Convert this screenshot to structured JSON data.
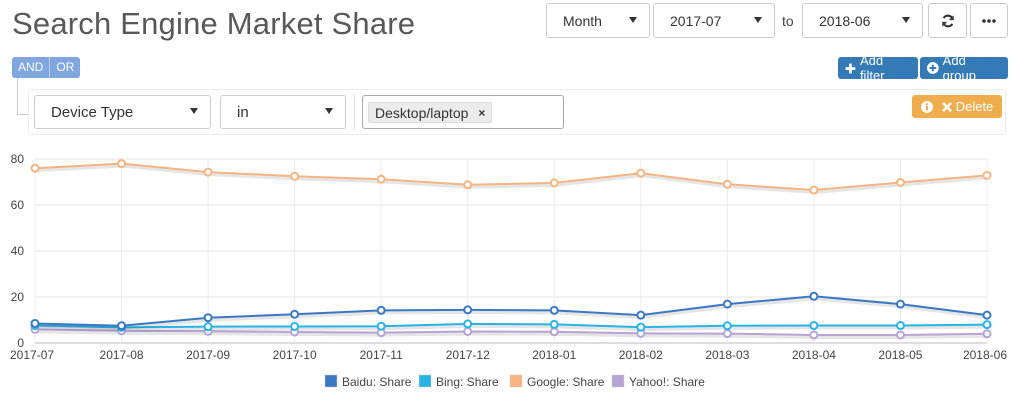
{
  "header": {
    "title": "Search Engine Market Share"
  },
  "range": {
    "granularity": "Month",
    "from": "2017-07",
    "to_label": "to",
    "to": "2018-06"
  },
  "toolbar": {
    "refresh_icon": "refresh-icon",
    "more_icon": "more-icon"
  },
  "filters": {
    "and_label": "AND",
    "or_label": "OR",
    "add_filter_label": "Add filter",
    "add_group_label": "Add group",
    "delete_label": "Delete",
    "rule": {
      "field": "Device Type",
      "operator": "in",
      "values": [
        "Desktop/laptop"
      ],
      "remove_symbol": "×"
    }
  },
  "colors": {
    "primary": "#337ab7",
    "warning": "#f0ad4e",
    "and_or": "#7fa6de"
  },
  "chart_data": {
    "type": "line",
    "title": "",
    "xlabel": "",
    "ylabel": "",
    "ylim": [
      0,
      80
    ],
    "yticks": [
      0,
      20,
      40,
      60,
      80
    ],
    "grid": true,
    "legend": "bottom",
    "categories": [
      "2017-07",
      "2017-08",
      "2017-09",
      "2017-10",
      "2017-11",
      "2017-12",
      "2018-01",
      "2018-02",
      "2018-03",
      "2018-04",
      "2018-05",
      "2018-06"
    ],
    "series": [
      {
        "name": "Baidu: Share",
        "color": "#3a78c4",
        "values": [
          8.5,
          7.5,
          11.0,
          12.5,
          14.2,
          14.4,
          14.2,
          12.1,
          16.9,
          20.3,
          16.9,
          12.1
        ]
      },
      {
        "name": "Bing: Share",
        "color": "#27b3e6",
        "values": [
          7.6,
          6.8,
          7.1,
          7.2,
          7.3,
          8.3,
          8.1,
          6.9,
          7.5,
          7.6,
          7.6,
          8.0
        ]
      },
      {
        "name": "Google: Share",
        "color": "#f5b482",
        "values": [
          76.0,
          78.0,
          74.3,
          72.5,
          71.2,
          68.8,
          69.6,
          73.8,
          69.0,
          66.5,
          69.8,
          72.9
        ]
      },
      {
        "name": "Yahoo!: Share",
        "color": "#b5a4d4",
        "values": [
          5.9,
          5.3,
          5.1,
          4.8,
          4.5,
          5.0,
          4.9,
          4.2,
          4.1,
          3.5,
          3.5,
          4.0
        ]
      }
    ]
  }
}
